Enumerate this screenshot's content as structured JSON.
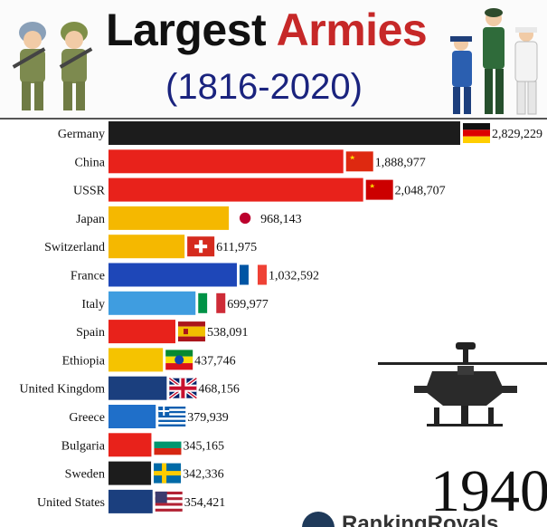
{
  "header": {
    "title_part1": "Largest ",
    "title_part2": "Armies",
    "subtitle": "(1816-2020)"
  },
  "year": "1940",
  "brand": "RankingRoyals",
  "colors": {
    "title": "#111111",
    "title_accent": "#c62828",
    "subtitle": "#1a237e"
  },
  "chart_data": {
    "type": "bar",
    "orientation": "horizontal",
    "title": "Largest Armies (1816-2020)",
    "xlabel": "",
    "ylabel": "",
    "categories": [
      "Germany",
      "China",
      "USSR",
      "Japan",
      "Switzerland",
      "France",
      "Italy",
      "Spain",
      "Ethiopia",
      "United Kingdom",
      "Greece",
      "Bulgaria",
      "Sweden",
      "United States"
    ],
    "values": [
      2829229,
      1888977,
      2048707,
      968143,
      611975,
      1032592,
      699977,
      538091,
      437746,
      468156,
      379939,
      345165,
      342336,
      354421
    ],
    "value_labels": [
      "2,829,229",
      "1,888,977",
      "2,048,707",
      "968,143",
      "611,975",
      "1,032,592",
      "699,977",
      "538,091",
      "437,746",
      "468,156",
      "379,939",
      "345,165",
      "342,336",
      "354,421"
    ],
    "bar_colors": [
      "#1c1c1c",
      "#e8221b",
      "#e8221b",
      "#f5b800",
      "#f5b800",
      "#1e47b8",
      "#3f9de0",
      "#e8221b",
      "#f5c300",
      "#1b3f7e",
      "#1f6fc9",
      "#e8221b",
      "#1c1c1c",
      "#1b3f7e"
    ],
    "flags": [
      "germany",
      "china",
      "ussr",
      "japan",
      "switzerland",
      "france",
      "italy",
      "spain",
      "ethiopia",
      "united-kingdom",
      "greece",
      "bulgaria",
      "sweden",
      "united-states"
    ],
    "grid": false,
    "legend": "none"
  }
}
